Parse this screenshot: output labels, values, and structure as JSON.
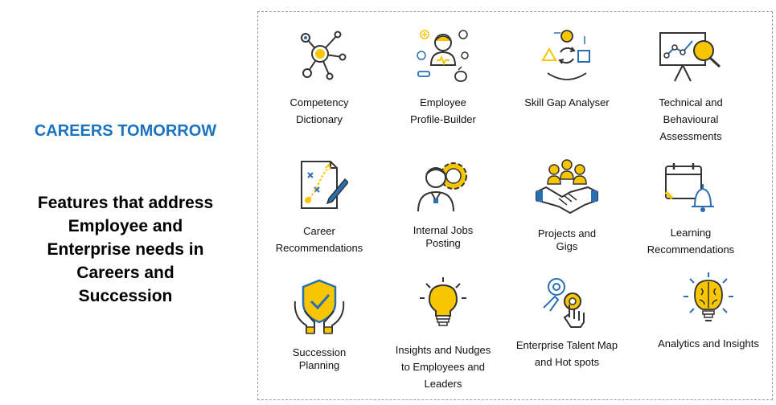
{
  "heading": "CAREERS TOMORROW",
  "subheading": [
    "Features that address",
    "Employee and",
    "Enterprise needs in",
    "Careers and",
    "Succession"
  ],
  "colors": {
    "accent": "#1b73bf",
    "yellow": "#f7c600",
    "icon_blue": "#2a6fb3",
    "dark": "#333333"
  },
  "features": [
    {
      "icon": "network-nodes-icon",
      "lines": [
        "Competency",
        "Dictionary"
      ]
    },
    {
      "icon": "profile-builder-icon",
      "lines": [
        "Employee",
        "Profile-Builder"
      ]
    },
    {
      "icon": "cycle-shapes-icon",
      "lines": [
        "Skill Gap Analyser"
      ]
    },
    {
      "icon": "presentation-chart-icon",
      "lines": [
        "Technical and",
        "Behavioural",
        "Assessments"
      ]
    },
    {
      "icon": "career-map-icon",
      "lines": [
        "Career",
        "Recommendations"
      ]
    },
    {
      "icon": "internal-job-icon",
      "lines": [
        "Internal Jobs",
        "Posting"
      ]
    },
    {
      "icon": "handshake-team-icon",
      "lines": [
        "Projects and",
        "Gigs"
      ]
    },
    {
      "icon": "calendar-bell-icon",
      "lines": [
        "Learning",
        "Recommendations"
      ]
    },
    {
      "icon": "shield-hands-icon",
      "lines": [
        "Succession",
        "Planning"
      ]
    },
    {
      "icon": "lightbulb-icon",
      "lines": [
        "Insights and Nudges",
        "to Employees and",
        "Leaders"
      ]
    },
    {
      "icon": "touch-map-icon",
      "lines": [
        "Enterprise Talent Map",
        "and Hot spots"
      ]
    },
    {
      "icon": "brain-bulb-icon",
      "lines": [
        "Analytics and Insights"
      ]
    }
  ]
}
